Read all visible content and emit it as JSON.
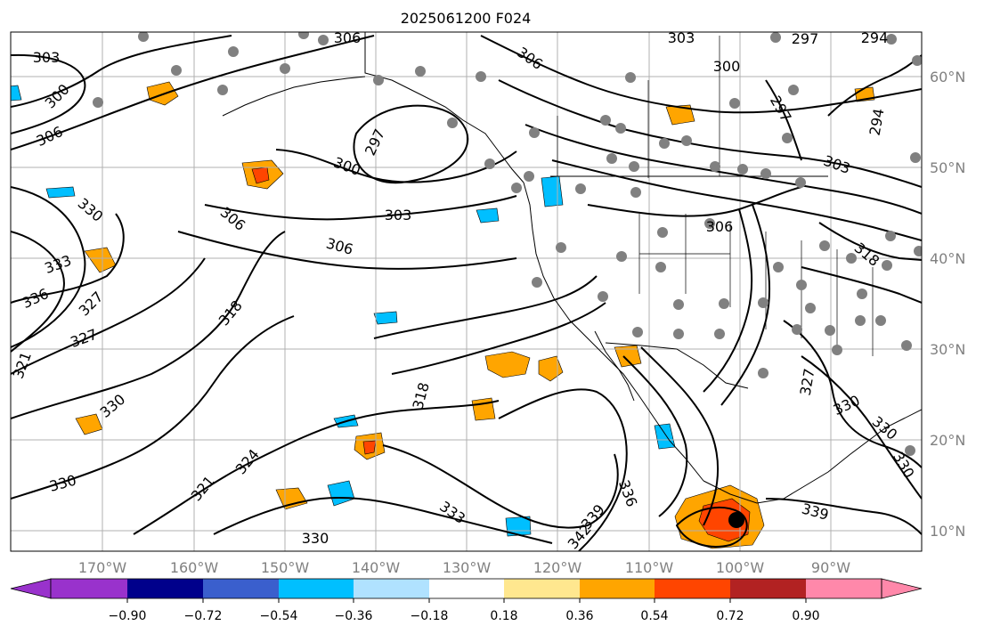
{
  "map": {
    "title": "2025061200 F024",
    "lon_labels": [
      "170°W",
      "160°W",
      "150°W",
      "140°W",
      "130°W",
      "120°W",
      "110°W",
      "100°W",
      "90°W"
    ],
    "lat_labels": [
      "60°N",
      "50°N",
      "40°N",
      "30°N",
      "20°N",
      "10°N"
    ],
    "contour_labels": [
      "303",
      "300",
      "306",
      "306",
      "303",
      "300",
      "297",
      "294",
      "306",
      "297",
      "300",
      "303",
      "306",
      "297",
      "294",
      "303",
      "330",
      "306",
      "306",
      "333",
      "336",
      "327",
      "327",
      "318",
      "321",
      "330",
      "330",
      "324",
      "321",
      "318",
      "336",
      "333",
      "339",
      "342",
      "330",
      "327",
      "330",
      "330",
      "339",
      "318",
      "330"
    ]
  },
  "colorbar": {
    "tick_labels": [
      "−0.90",
      "−0.72",
      "−0.54",
      "−0.36",
      "−0.18",
      "0.18",
      "0.36",
      "0.54",
      "0.72",
      "0.90"
    ],
    "colors": [
      "#9932cc",
      "#00008b",
      "#3a5fcd",
      "#00bfff",
      "#b0e2ff",
      "#ffffff",
      "#ffe78f",
      "#ffa500",
      "#ff4500",
      "#b22222",
      "#ff88aa"
    ]
  },
  "colors": {
    "coast": "#000000",
    "grid": "#b0b0b0",
    "station_dot": "#808080"
  }
}
